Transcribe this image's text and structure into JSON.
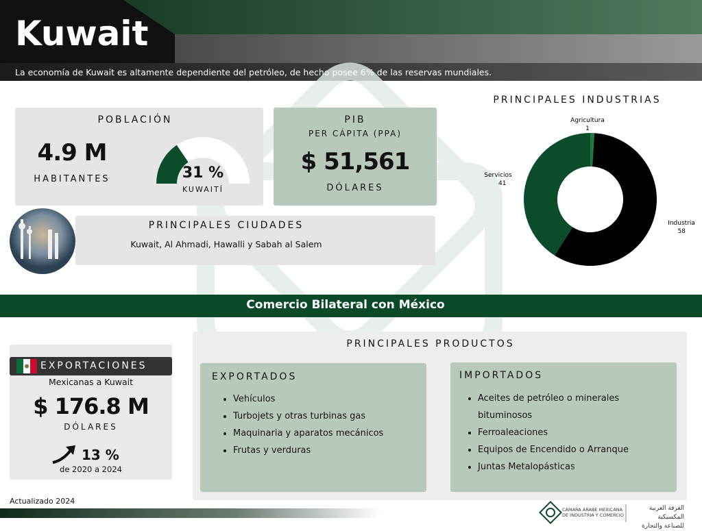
{
  "header": {
    "title": "Kuwait",
    "subtitle": "La economía de Kuwait es altamente dependiente del petróleo, de hecho posee 6% de las reservas mundiales."
  },
  "poblacion": {
    "title": "POBLACIÓN",
    "value": "4.9 M",
    "unit": "HABITANTES",
    "share": {
      "value": 31,
      "label": "31 %"
    },
    "share_label": "KUWAITÍ"
  },
  "pib": {
    "title": "PIB",
    "subtitle": "PER CÁPITA (PPA)",
    "value": "$ 51,561",
    "unit": "DÓLARES"
  },
  "ciudades": {
    "title": "PRINCIPALES CIUDADES",
    "list": "Kuwait, Al Ahmadi, Hawalli y Sabah al Salem"
  },
  "chart_data": {
    "type": "pie",
    "donut": true,
    "title": "PRINCIPALES INDUSTRIAS",
    "categories": [
      "Agricultura",
      "Industria",
      "Servicios"
    ],
    "values": [
      1,
      58,
      41
    ],
    "colors": [
      "#1e7a3e",
      "#000000",
      "#0b4d2a"
    ]
  },
  "comercio": {
    "title": "Comercio Bilateral con México"
  },
  "exportaciones": {
    "title": "EXPORTACIONES",
    "subtitle": "Mexicanas a Kuwait",
    "value": "$ 176.8 M",
    "unit": "DÓLARES",
    "growth": "13 %",
    "period": "de 2020 a 2024"
  },
  "productos": {
    "title": "PRINCIPALES PRODUCTOS",
    "exportados": {
      "title": "EXPORTADOS",
      "items": [
        "Vehículos",
        "Turbojets y otras turbinas gas",
        "Maquinaria y aparatos mecánicos",
        "Frutas y verduras"
      ]
    },
    "importados": {
      "title": "IMPORTADOS",
      "items": [
        "Aceites de petróleo o minerales bituminosos",
        "Ferroaleaciones",
        "Equipos de Encendido o Arranque",
        "Juntas Metalopásticas"
      ]
    }
  },
  "footer": {
    "updated": "Actualizado 2024",
    "org_es": [
      "CÁMARA ÁRABE MEXICANA",
      "DE INDUSTRIA Y COMERCIO"
    ],
    "org_ar": [
      "الغرفة العربية المكسيكية",
      "للصناعة والتجارة"
    ]
  }
}
